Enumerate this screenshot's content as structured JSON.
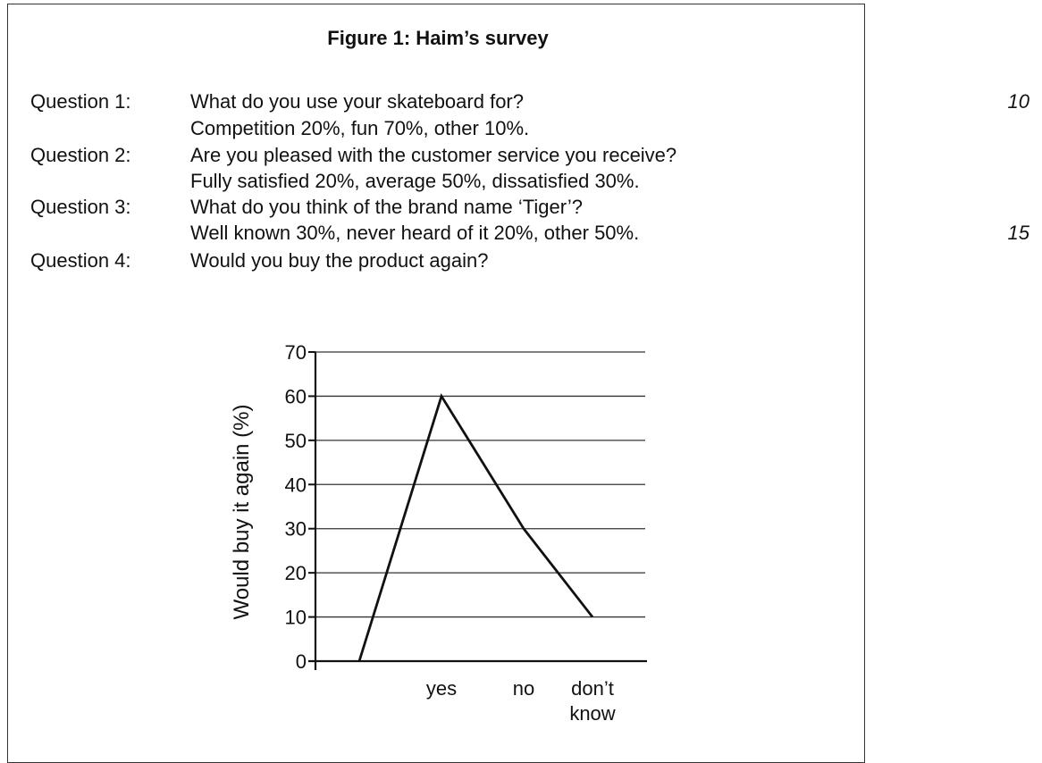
{
  "document": {
    "title": "Figure 1: Haim’s survey",
    "line_numbers": [
      "10",
      "15"
    ],
    "questions": [
      {
        "label": "Question 1:",
        "question": "What do you use your skateboard for?",
        "answer": "Competition 20%, fun 70%, other 10%."
      },
      {
        "label": "Question 2:",
        "question": "Are you pleased with the customer service you receive?",
        "answer": "Fully satisfied 20%, average 50%, dissatisfied 30%."
      },
      {
        "label": "Question 3:",
        "question": "What do you think of the brand name ‘Tiger’?",
        "answer": "Well known 30%, never heard of it 20%, other 50%."
      },
      {
        "label": "Question 4:",
        "question": "Would you buy the product again?"
      }
    ]
  },
  "chart_data": {
    "type": "line",
    "title": "",
    "ylabel": "Would buy it again (%)",
    "xlabel": "",
    "x_tick_labels": [
      {
        "lines": [
          "yes"
        ]
      },
      {
        "lines": [
          "no"
        ]
      },
      {
        "lines": [
          "don’t",
          "know"
        ]
      }
    ],
    "x": [
      "",
      "yes",
      "no",
      "don’t know"
    ],
    "values": [
      0,
      60,
      30,
      10
    ],
    "ylim": [
      0,
      70
    ],
    "yticks": [
      0,
      10,
      20,
      30,
      40,
      50,
      60,
      70
    ],
    "grid": true,
    "legend": "none",
    "colors": {
      "line": "#111111",
      "grid": "#333333",
      "text": "#111111"
    }
  }
}
